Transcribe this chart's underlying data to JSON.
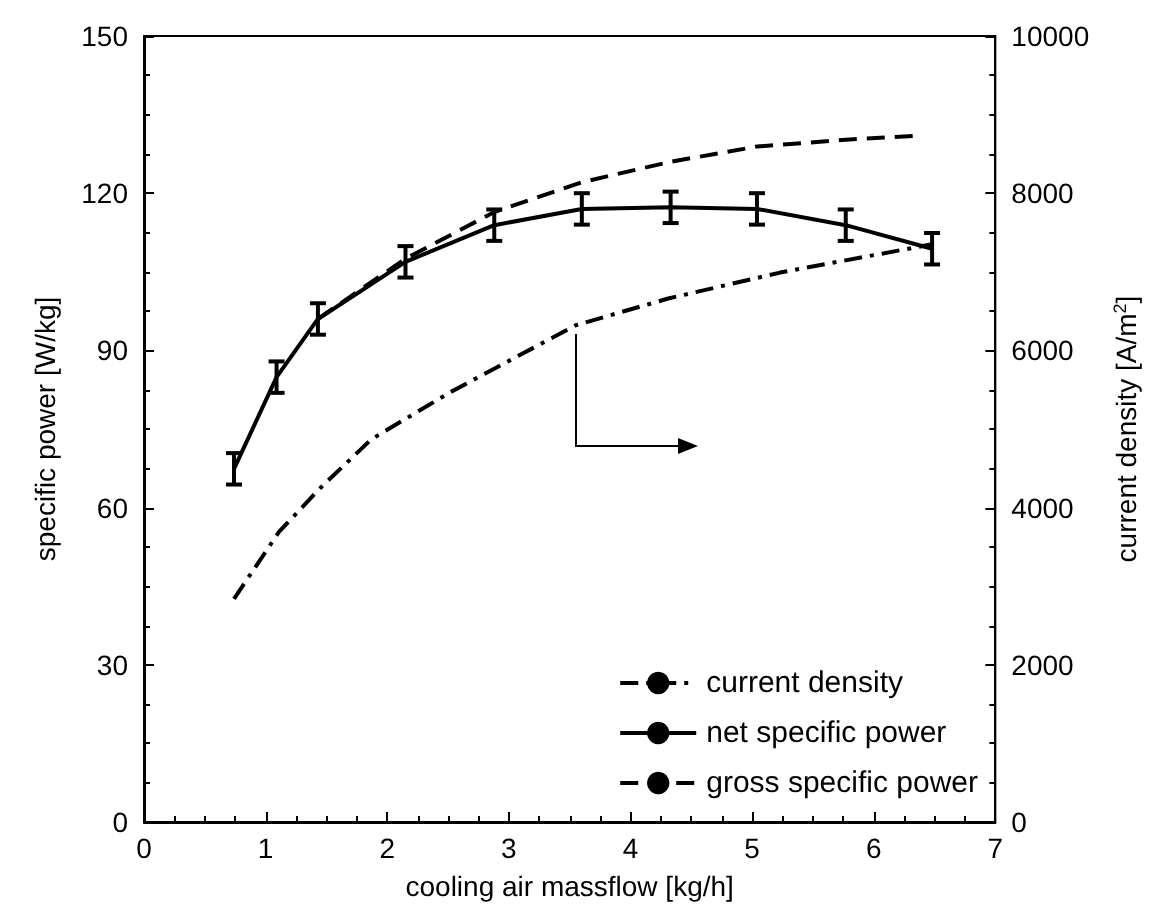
{
  "chart_data": {
    "type": "line",
    "xlabel": "cooling air massflow [kg/h]",
    "ylabel": "specific power [W/kg]",
    "y2label": "current density [A/m$^{2}$]",
    "xlim": [
      0,
      7
    ],
    "xticks": [
      0,
      1,
      2,
      3,
      4,
      5,
      6,
      7
    ],
    "ylim": [
      0,
      150
    ],
    "yticks": [
      0,
      30,
      60,
      90,
      120,
      150
    ],
    "y2lim": [
      0,
      10000
    ],
    "y2ticks": [
      0,
      2000,
      4000,
      6000,
      8000,
      10000
    ],
    "grid": false,
    "legend": "bottom right",
    "marker": "none",
    "series": [
      {
        "name": "current density",
        "color": "#000000",
        "axis": "y2",
        "line_style": "dashdot",
        "x": [
          0.74,
          1.11,
          1.45,
          1.87,
          2.52,
          3.55,
          4.31,
          5.23,
          6.48
        ],
        "values": [
          2840,
          3690,
          4250,
          4870,
          5470,
          6320,
          6660,
          6990,
          7350
        ]
      },
      {
        "name": "net specific power",
        "color": "#000000",
        "line_style": "solid",
        "x": [
          0.74,
          1.09,
          1.43,
          2.15,
          2.88,
          3.6,
          4.33,
          5.04,
          5.77,
          6.48
        ],
        "values": [
          67.4,
          84.9,
          96,
          106.9,
          113.9,
          117,
          117.3,
          117,
          113.9,
          109.4
        ],
        "errors": [
          3,
          3,
          3,
          3,
          3,
          3,
          3,
          3,
          3,
          3
        ]
      },
      {
        "name": "gross specific power",
        "color": "#000000",
        "line_style": "dashed",
        "x": [
          1.43,
          2.15,
          2.88,
          3.6,
          4.33,
          5.04,
          5.77,
          6.37
        ],
        "values": [
          96,
          107.5,
          116.4,
          122.1,
          126,
          128.9,
          130.2,
          131
        ]
      }
    ]
  }
}
